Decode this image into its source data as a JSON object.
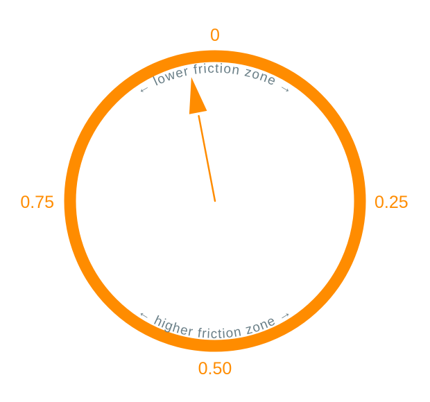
{
  "colors": {
    "ring": "#ff8c00",
    "needle": "#ff8c00",
    "tick_label": "#ff8c00",
    "zone_text": "#6a7f87"
  },
  "dial": {
    "ticks": [
      {
        "value": 0,
        "label": "0"
      },
      {
        "value": 0.25,
        "label": "0.25"
      },
      {
        "value": 0.5,
        "label": "0.50"
      },
      {
        "value": 0.75,
        "label": "0.75"
      }
    ],
    "pointer_value": 0.97,
    "zones": {
      "upper": "← lower friction zone →",
      "lower": "← higher friction zone →"
    }
  }
}
